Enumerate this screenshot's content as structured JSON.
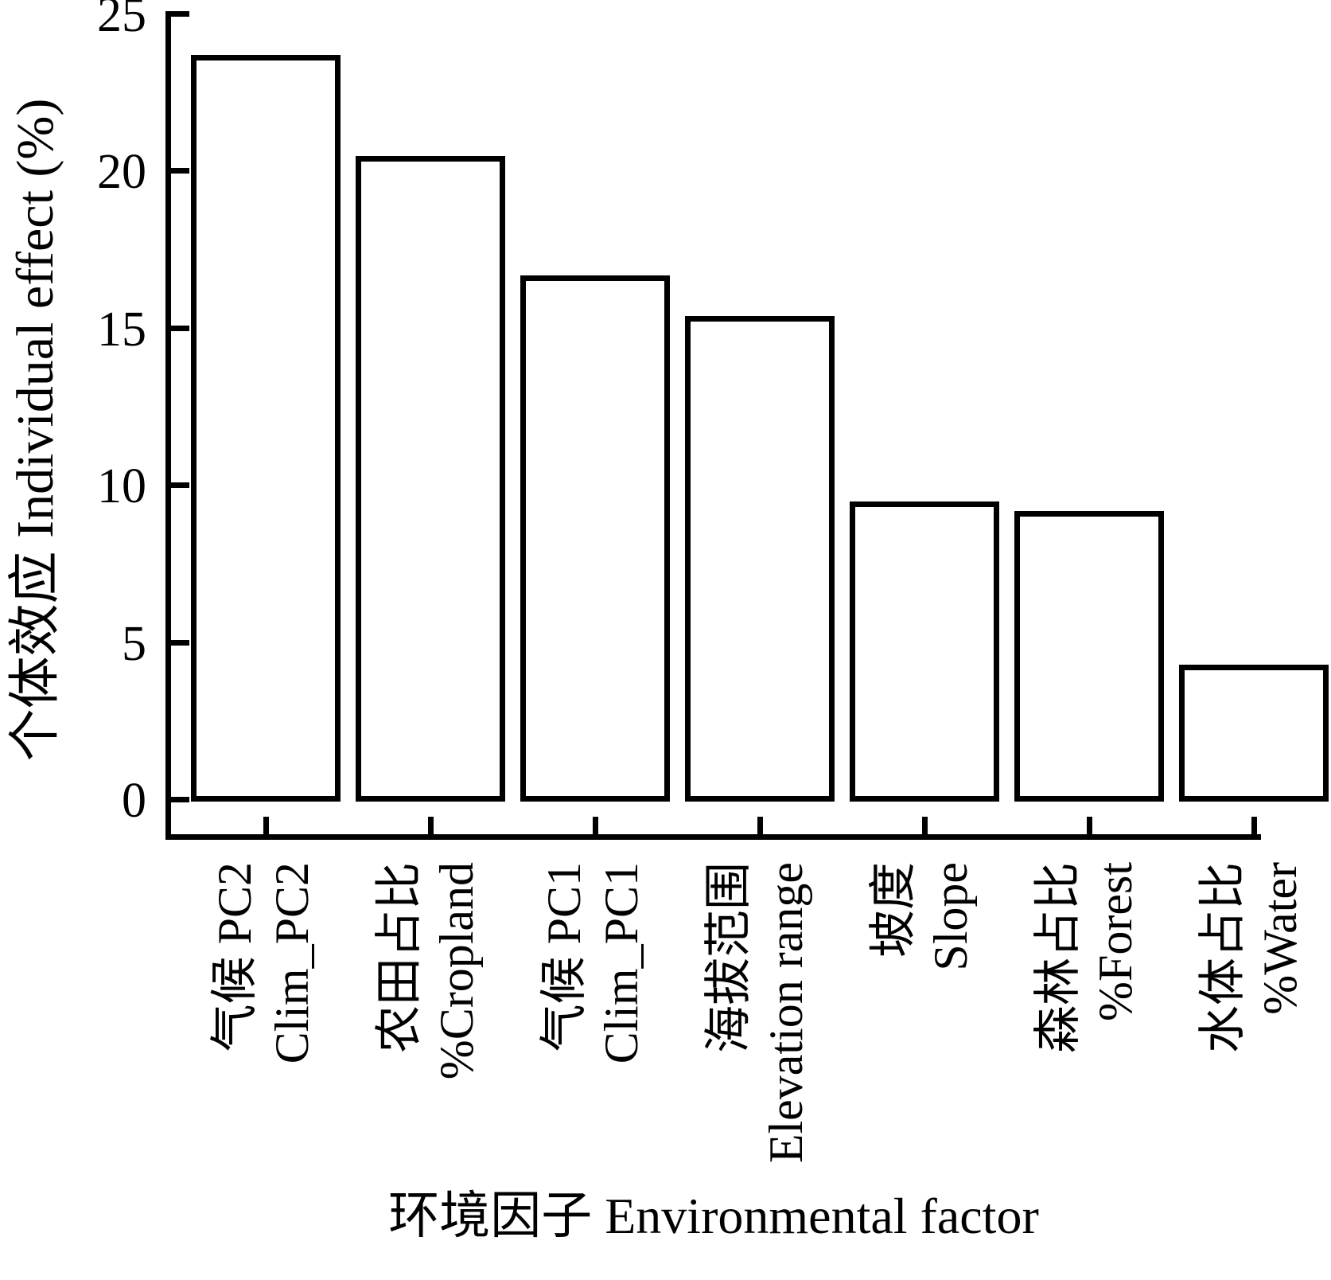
{
  "figure": {
    "background_color": "#ffffff",
    "ink_color": "#000000"
  },
  "chart_data": {
    "type": "bar",
    "title": "",
    "xlabel": "环境因子 Environmental factor",
    "ylabel": "个体效应 Individual effect (%)",
    "ylim": [
      0,
      25
    ],
    "yticks": [
      0,
      5,
      10,
      15,
      20,
      25
    ],
    "grid": false,
    "legend": "none",
    "bar_fill": "#ffffff",
    "bar_stroke": "#000000",
    "categories": [
      {
        "zh": "气候 PC2",
        "en": "Clim_PC2"
      },
      {
        "zh": "农田占比",
        "en": "%Cropland"
      },
      {
        "zh": "气候 PC1",
        "en": "Clim_PC1"
      },
      {
        "zh": "海拔范围",
        "en": "Elevation range"
      },
      {
        "zh": "坡度",
        "en": "Slope"
      },
      {
        "zh": "森林占比",
        "en": "%Forest"
      },
      {
        "zh": "水体占比",
        "en": "%Water"
      }
    ],
    "values": [
      23.6,
      20.4,
      16.6,
      15.3,
      9.4,
      9.1,
      4.2
    ]
  }
}
